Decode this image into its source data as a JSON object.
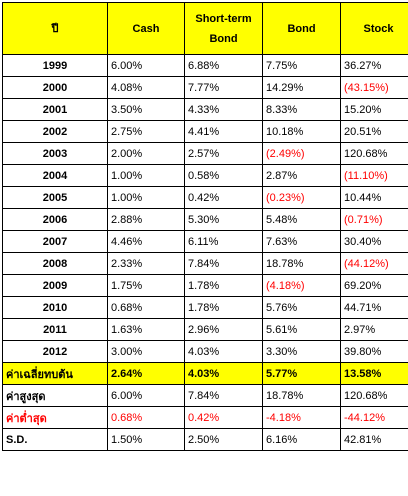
{
  "header": {
    "year_label": "ปี",
    "cash": "Cash",
    "short_term_line1": "Short-term",
    "short_term_line2": "Bond",
    "bond": "Bond",
    "stock": "Stock"
  },
  "rows": [
    {
      "year": "1999",
      "cash": "6.00%",
      "short": "6.88%",
      "bond": "7.75%",
      "stock": "36.27%"
    },
    {
      "year": "2000",
      "cash": "4.08%",
      "short": "7.77%",
      "bond": "14.29%",
      "stock": "(43.15%)"
    },
    {
      "year": "2001",
      "cash": "3.50%",
      "short": "4.33%",
      "bond": "8.33%",
      "stock": "15.20%"
    },
    {
      "year": "2002",
      "cash": "2.75%",
      "short": "4.41%",
      "bond": "10.18%",
      "stock": "20.51%"
    },
    {
      "year": "2003",
      "cash": "2.00%",
      "short": "2.57%",
      "bond": "(2.49%)",
      "stock": "120.68%"
    },
    {
      "year": "2004",
      "cash": "1.00%",
      "short": "0.58%",
      "bond": "2.87%",
      "stock": "(11.10%)"
    },
    {
      "year": "2005",
      "cash": "1.00%",
      "short": "0.42%",
      "bond": "(0.23%)",
      "stock": "10.44%"
    },
    {
      "year": "2006",
      "cash": "2.88%",
      "short": "5.30%",
      "bond": "5.48%",
      "stock": "(0.71%)"
    },
    {
      "year": "2007",
      "cash": "4.46%",
      "short": "6.11%",
      "bond": "7.63%",
      "stock": "30.40%"
    },
    {
      "year": "2008",
      "cash": "2.33%",
      "short": "7.84%",
      "bond": "18.78%",
      "stock": "(44.12%)"
    },
    {
      "year": "2009",
      "cash": "1.75%",
      "short": "1.78%",
      "bond": "(4.18%)",
      "stock": "69.20%"
    },
    {
      "year": "2010",
      "cash": "0.68%",
      "short": "1.78%",
      "bond": "5.76%",
      "stock": "44.71%"
    },
    {
      "year": "2011",
      "cash": "1.63%",
      "short": "2.96%",
      "bond": "5.61%",
      "stock": "2.97%"
    },
    {
      "year": "2012",
      "cash": "3.00%",
      "short": "4.03%",
      "bond": "3.30%",
      "stock": "39.80%"
    }
  ],
  "summary": {
    "average": {
      "label": "ค่าเฉลี่ยทบต้น",
      "cash": "2.64%",
      "short": "4.03%",
      "bond": "5.77%",
      "stock": "13.58%"
    },
    "max": {
      "label": "ค่าสูงสุด",
      "cash": "6.00%",
      "short": "7.84%",
      "bond": "18.78%",
      "stock": "120.68%"
    },
    "min": {
      "label": "ค่าต่ำสุด",
      "cash": "0.68%",
      "short": "0.42%",
      "bond": "-4.18%",
      "stock": "-44.12%"
    },
    "sd": {
      "label": "S.D.",
      "cash": "1.50%",
      "short": "2.50%",
      "bond": "6.16%",
      "stock": "42.81%"
    }
  },
  "colors": {
    "header_bg": "#ffff00",
    "negative": "#ff0000"
  }
}
